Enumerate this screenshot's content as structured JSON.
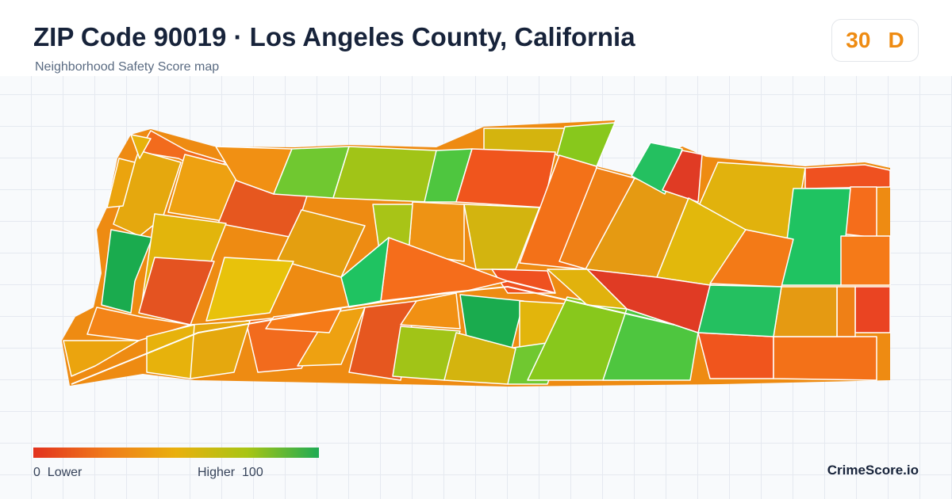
{
  "header": {
    "title": "ZIP Code 90019 · Los Angeles County, California",
    "subtitle": "Neighborhood Safety Score map"
  },
  "score_badge": {
    "score": "30",
    "grade": "D",
    "color": "#ee8b12"
  },
  "legend": {
    "low_label": "0  Lower",
    "high_label": "Higher  100",
    "gradient_colors": [
      "#e2321e",
      "#f07a1a",
      "#e9b00e",
      "#a8c514",
      "#1fab54"
    ]
  },
  "brand": "CrimeScore.io",
  "map": {
    "tract_colors": [
      "#f26b1d",
      "#e5a80e",
      "#e7b20c",
      "#eba40e",
      "#eea111",
      "#e6571f",
      "#f19013",
      "#1aab4e",
      "#e2b50c",
      "#70c830",
      "#a1c417",
      "#d4b40e",
      "#88c81c",
      "#4ec63f",
      "#f0551d",
      "#f37118",
      "#ef8016",
      "#e59a12",
      "#24c060",
      "#e03b24",
      "#e1b20d",
      "#ef5120",
      "#f56d1b",
      "#1fc361",
      "#f57a18",
      "#ea4422",
      "#e2b80c",
      "#f37a17",
      "#d3b40f",
      "#ee9314",
      "#a8c417",
      "#e49f10",
      "#e8c20b",
      "#e45321",
      "#f38418"
    ]
  }
}
